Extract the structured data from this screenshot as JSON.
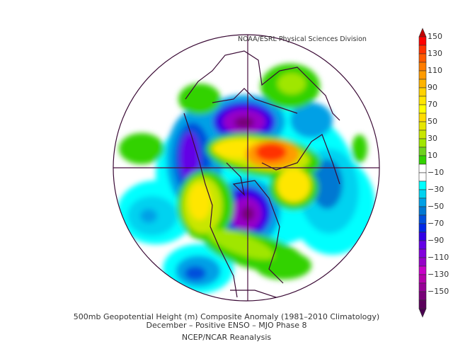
{
  "credit": "NOAA/ESRL Physical Sciences Division",
  "title_line1": "500mb Geopotential Height (m) Composite Anomaly (1981–2010 Climatology)",
  "title_line2": "December – Positive ENSO – MJO Phase 8",
  "source": "NCEP/NCAR Reanalysis",
  "projection": "north polar stereographic",
  "colorbar": {
    "labels": [
      "150",
      "130",
      "110",
      "90",
      "70",
      "50",
      "30",
      "10",
      "−10",
      "−30",
      "−50",
      "−70",
      "−90",
      "−110",
      "−130",
      "−150"
    ],
    "top_arrow_color": "#c00000",
    "bottom_arrow_color": "#4a0050",
    "colors": [
      "#ff0000",
      "#ff3200",
      "#ff5a00",
      "#ff7d00",
      "#ff9b00",
      "#ffb400",
      "#ffd200",
      "#ffe600",
      "#ffff00",
      "#ffdc00",
      "#e6e600",
      "#c8e600",
      "#a0e600",
      "#6ed21e",
      "#32d200",
      "#ffffff",
      "#ffffff",
      "#00ffff",
      "#00d2f0",
      "#00a0e6",
      "#0078d2",
      "#0050dc",
      "#0028e6",
      "#3200e6",
      "#6400e6",
      "#8200dc",
      "#9600c8",
      "#c800c8",
      "#b400aa",
      "#960096",
      "#780078",
      "#5a005a"
    ]
  }
}
